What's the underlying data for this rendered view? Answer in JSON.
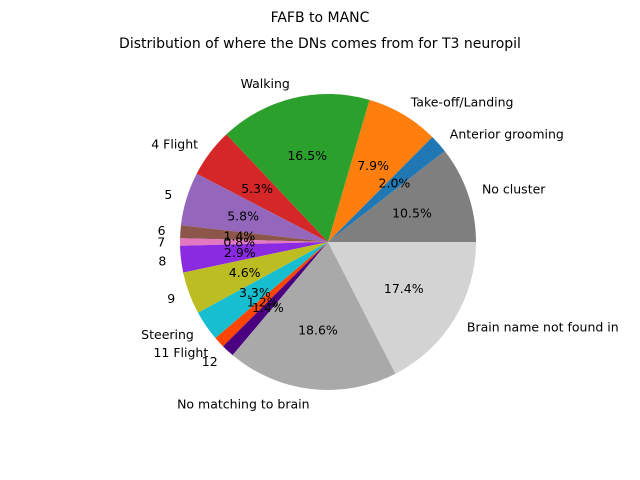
{
  "chart_data": {
    "type": "pie",
    "title": "FAFB to MANC",
    "subtitle": "Distribution of where the DNs comes from for T3 neuropil",
    "start_angle_deg": 0,
    "direction": "counterclockwise",
    "slices": [
      {
        "label": "No cluster",
        "value": 10.5,
        "pct_label": "10.5%",
        "color": "#7f7f7f"
      },
      {
        "label": "Anterior grooming",
        "value": 2.0,
        "pct_label": "2.0%",
        "color": "#1f77b4"
      },
      {
        "label": "Take-off/Landing",
        "value": 7.9,
        "pct_label": "7.9%",
        "color": "#ff7f0e"
      },
      {
        "label": "Walking",
        "value": 16.5,
        "pct_label": "16.5%",
        "color": "#2ca02c"
      },
      {
        "label": "4 Flight",
        "value": 5.3,
        "pct_label": "5.3%",
        "color": "#d62728"
      },
      {
        "label": "5",
        "value": 5.8,
        "pct_label": "5.8%",
        "color": "#9467bd"
      },
      {
        "label": "6",
        "value": 1.4,
        "pct_label": "1.4%",
        "color": "#8c564b"
      },
      {
        "label": "7",
        "value": 0.8,
        "pct_label": "0.8%",
        "color": "#e377c2"
      },
      {
        "label": "8",
        "value": 2.9,
        "pct_label": "2.9%",
        "color": "#8a2be2"
      },
      {
        "label": "9",
        "value": 4.6,
        "pct_label": "4.6%",
        "color": "#bcbd22"
      },
      {
        "label": "Steering",
        "value": 3.3,
        "pct_label": "3.3%",
        "color": "#17becf"
      },
      {
        "label": "11 Flight",
        "value": 1.2,
        "pct_label": "1.2%",
        "color": "#ff4500"
      },
      {
        "label": "12",
        "value": 1.4,
        "pct_label": "1.4%",
        "color": "#4b0082"
      },
      {
        "label": "No matching to brain",
        "value": 18.6,
        "pct_label": "18.6%",
        "color": "#a9a9a9"
      },
      {
        "label": "Brain name not found in",
        "value": 17.4,
        "pct_label": "17.4%",
        "color": "#d3d3d3"
      }
    ]
  }
}
